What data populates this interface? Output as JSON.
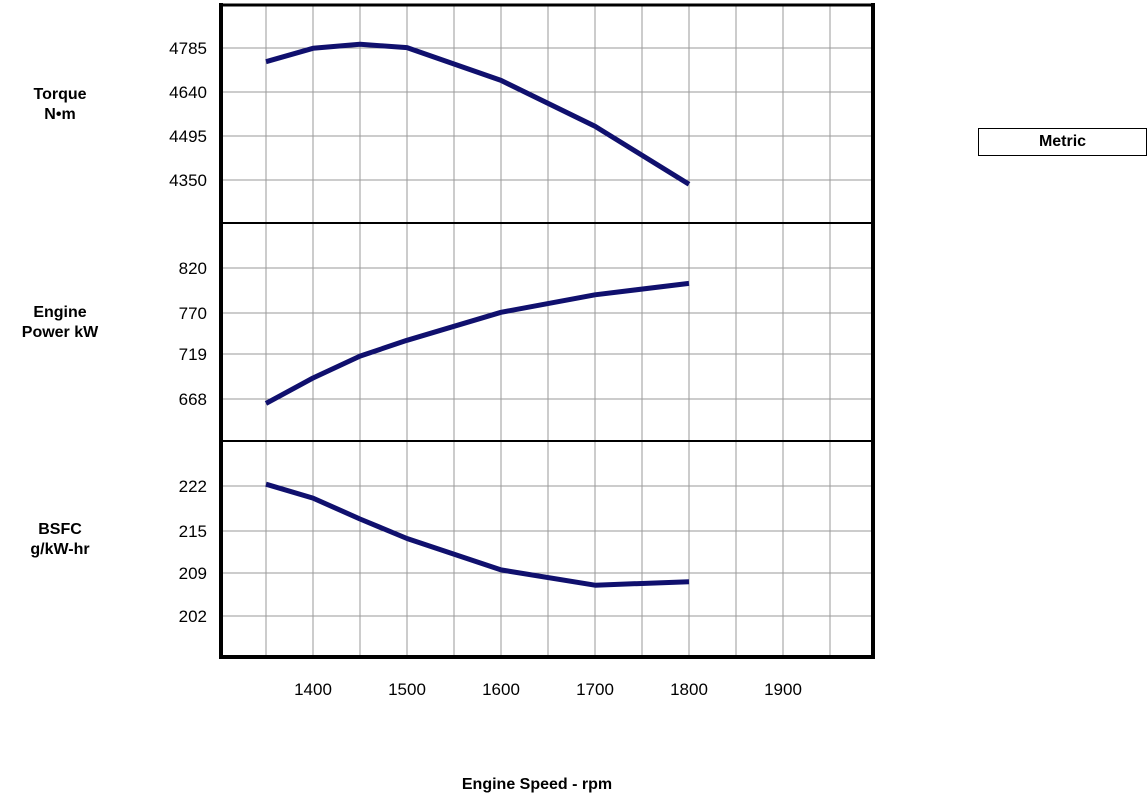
{
  "chart_data": {
    "type": "line",
    "xlabel": "Engine Speed - rpm",
    "x_ticks": [
      1400,
      1500,
      1600,
      1700,
      1800,
      1900
    ],
    "xlim": [
      1300,
      1980
    ],
    "legend": "Metric",
    "panels": [
      {
        "ylabel": [
          "Torque",
          "N•m"
        ],
        "yticks": [
          "4785",
          "4640",
          "4495",
          "4350"
        ],
        "ylim": [
          4235,
          4900
        ],
        "series": [
          {
            "x": [
              1350,
              1400,
              1450,
              1500,
              1600,
              1700,
              1800
            ],
            "y": [
              4727,
              4768,
              4780,
              4770,
              4670,
              4530,
              4353
            ]
          }
        ]
      },
      {
        "ylabel": [
          "Engine",
          "Power kW"
        ],
        "yticks": [
          "820",
          "770",
          "719",
          "668"
        ],
        "ylim": [
          625,
          874
        ],
        "series": [
          {
            "x": [
              1350,
              1400,
              1450,
              1500,
              1600,
              1700,
              1800
            ],
            "y": [
              668,
              697,
              722,
              740,
              772,
              792,
              805
            ]
          }
        ]
      },
      {
        "ylabel": [
          "BSFC",
          "g/kW-hr"
        ],
        "yticks": [
          "222",
          "215",
          "209",
          "202"
        ],
        "ylim": [
          196.5,
          227.5
        ],
        "series": [
          {
            "x": [
              1350,
              1400,
              1450,
              1500,
              1600,
              1700,
              1800
            ],
            "y": [
              221.3,
              219.3,
              216.3,
              213.5,
              209.0,
              206.8,
              207.3
            ]
          }
        ]
      }
    ]
  }
}
